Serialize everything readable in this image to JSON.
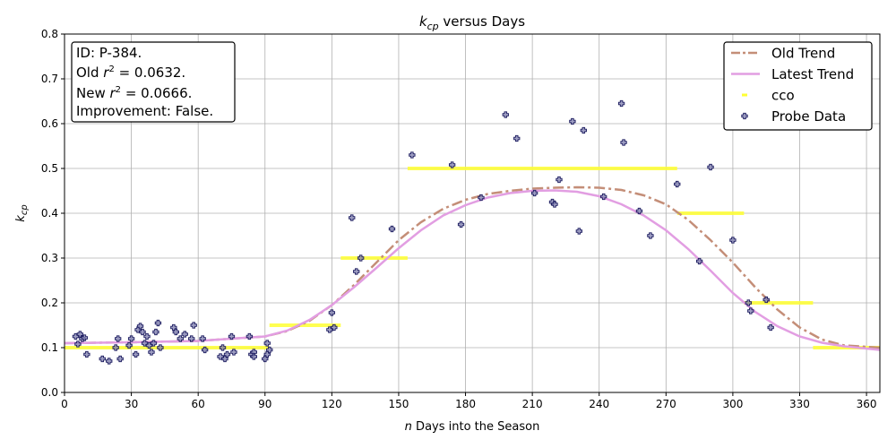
{
  "chart_data": {
    "type": "scatter",
    "title_prefix": "k",
    "title_sub": "cp",
    "title_suffix": " versus Days",
    "xlabel_italic": "n",
    "xlabel_rest": " Days into the Season",
    "ylabel_main": "k",
    "ylabel_sub": "cp",
    "xlim": [
      0,
      366
    ],
    "ylim": [
      0.0,
      0.8
    ],
    "xticks": [
      0,
      30,
      60,
      90,
      120,
      150,
      180,
      210,
      240,
      270,
      300,
      330,
      360
    ],
    "yticks": [
      0.0,
      0.1,
      0.2,
      0.3,
      0.4,
      0.5,
      0.6,
      0.7,
      0.8
    ],
    "grid": true,
    "legend_position": "top-right",
    "info_box": {
      "id_line": "ID: P-384.",
      "old_prefix": "Old ",
      "old_value": " = 0.0632.",
      "new_prefix": "New ",
      "new_value": " = 0.0666.",
      "improvement": "Improvement: False.",
      "r_symbol": "r",
      "r_exp": "2"
    },
    "series": [
      {
        "name": "Old Trend",
        "kind": "line",
        "style": "dashdot",
        "color": "#c48e78",
        "x": [
          0,
          30,
          60,
          90,
          100,
          110,
          120,
          130,
          140,
          150,
          160,
          170,
          180,
          190,
          200,
          210,
          220,
          230,
          240,
          250,
          260,
          270,
          280,
          290,
          300,
          310,
          320,
          330,
          340,
          350,
          366
        ],
        "y": [
          0.11,
          0.112,
          0.115,
          0.125,
          0.137,
          0.16,
          0.195,
          0.24,
          0.29,
          0.34,
          0.38,
          0.41,
          0.43,
          0.443,
          0.45,
          0.455,
          0.457,
          0.458,
          0.457,
          0.452,
          0.44,
          0.42,
          0.385,
          0.34,
          0.29,
          0.235,
          0.185,
          0.145,
          0.118,
          0.105,
          0.1
        ]
      },
      {
        "name": "Latest Trend",
        "kind": "line",
        "style": "solid",
        "color": "#e29ee2",
        "x": [
          0,
          30,
          60,
          90,
          100,
          110,
          120,
          130,
          140,
          150,
          160,
          170,
          180,
          190,
          200,
          210,
          220,
          230,
          240,
          250,
          260,
          270,
          280,
          290,
          300,
          310,
          320,
          330,
          340,
          350,
          366
        ],
        "y": [
          0.11,
          0.112,
          0.115,
          0.125,
          0.138,
          0.162,
          0.195,
          0.235,
          0.278,
          0.322,
          0.362,
          0.395,
          0.418,
          0.435,
          0.445,
          0.45,
          0.451,
          0.448,
          0.438,
          0.42,
          0.395,
          0.362,
          0.32,
          0.272,
          0.222,
          0.18,
          0.148,
          0.125,
          0.111,
          0.103,
          0.095
        ]
      },
      {
        "name": "cco",
        "kind": "steps",
        "color": "#ffff33",
        "segments": [
          {
            "x0": 0,
            "x1": 92,
            "y": 0.1
          },
          {
            "x0": 92,
            "x1": 124,
            "y": 0.15
          },
          {
            "x0": 124,
            "x1": 154,
            "y": 0.3
          },
          {
            "x0": 154,
            "x1": 275,
            "y": 0.5
          },
          {
            "x0": 275,
            "x1": 305,
            "y": 0.4
          },
          {
            "x0": 305,
            "x1": 336,
            "y": 0.2
          },
          {
            "x0": 336,
            "x1": 366,
            "y": 0.1
          }
        ]
      },
      {
        "name": "Probe Data",
        "kind": "scatter",
        "marker": "plus",
        "color": "#1a1a5e",
        "fill": "#8080b0",
        "points": [
          [
            5,
            0.125
          ],
          [
            6,
            0.108
          ],
          [
            7,
            0.13
          ],
          [
            8,
            0.12
          ],
          [
            9,
            0.122
          ],
          [
            10,
            0.085
          ],
          [
            17,
            0.075
          ],
          [
            20,
            0.07
          ],
          [
            23,
            0.1
          ],
          [
            24,
            0.12
          ],
          [
            25,
            0.075
          ],
          [
            29,
            0.105
          ],
          [
            30,
            0.12
          ],
          [
            32,
            0.085
          ],
          [
            33,
            0.14
          ],
          [
            34,
            0.148
          ],
          [
            35,
            0.135
          ],
          [
            36,
            0.11
          ],
          [
            37,
            0.125
          ],
          [
            38,
            0.105
          ],
          [
            39,
            0.09
          ],
          [
            40,
            0.11
          ],
          [
            41,
            0.135
          ],
          [
            42,
            0.155
          ],
          [
            43,
            0.1
          ],
          [
            49,
            0.145
          ],
          [
            50,
            0.135
          ],
          [
            52,
            0.12
          ],
          [
            54,
            0.13
          ],
          [
            57,
            0.12
          ],
          [
            58,
            0.15
          ],
          [
            62,
            0.12
          ],
          [
            63,
            0.095
          ],
          [
            70,
            0.08
          ],
          [
            71,
            0.1
          ],
          [
            72,
            0.075
          ],
          [
            73,
            0.085
          ],
          [
            75,
            0.125
          ],
          [
            76,
            0.09
          ],
          [
            83,
            0.125
          ],
          [
            84,
            0.085
          ],
          [
            85,
            0.09
          ],
          [
            85,
            0.08
          ],
          [
            90,
            0.075
          ],
          [
            91,
            0.11
          ],
          [
            91,
            0.085
          ],
          [
            92,
            0.095
          ],
          [
            119,
            0.14
          ],
          [
            120,
            0.178
          ],
          [
            121,
            0.145
          ],
          [
            129,
            0.39
          ],
          [
            131,
            0.27
          ],
          [
            133,
            0.3
          ],
          [
            147,
            0.365
          ],
          [
            156,
            0.53
          ],
          [
            174,
            0.508
          ],
          [
            178,
            0.375
          ],
          [
            187,
            0.435
          ],
          [
            198,
            0.62
          ],
          [
            203,
            0.567
          ],
          [
            211,
            0.445
          ],
          [
            219,
            0.425
          ],
          [
            220,
            0.42
          ],
          [
            222,
            0.475
          ],
          [
            228,
            0.605
          ],
          [
            231,
            0.36
          ],
          [
            233,
            0.585
          ],
          [
            242,
            0.437
          ],
          [
            250,
            0.645
          ],
          [
            251,
            0.558
          ],
          [
            258,
            0.405
          ],
          [
            263,
            0.35
          ],
          [
            275,
            0.465
          ],
          [
            285,
            0.293
          ],
          [
            290,
            0.503
          ],
          [
            300,
            0.34
          ],
          [
            307,
            0.2
          ],
          [
            308,
            0.182
          ],
          [
            315,
            0.207
          ],
          [
            317,
            0.145
          ]
        ]
      }
    ]
  }
}
